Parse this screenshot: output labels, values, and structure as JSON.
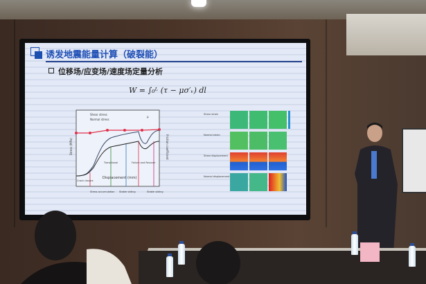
{
  "slide": {
    "title": "诱发地震能量计算（破裂能）",
    "bullet": "位移场/应变场/速度场定量分析",
    "formula": "W = ∫₀ᴸ (τ − μσ′ᵥ) dl",
    "chart": {
      "legend": [
        "Shear stress",
        "Normal stress",
        "μ"
      ],
      "y_label": "Stress (MPa)",
      "y2_label": "Friction coefficient",
      "x_label": "Displacement (mm)",
      "phase_labels": [
        "Transitional",
        "Failure and Recover"
      ],
      "stage_labels": [
        "Crack closure",
        "Stress accumulation",
        "Stable sliding",
        "Stable sliding"
      ],
      "colors": {
        "shear": "#222222",
        "normal": "#e0304a",
        "mu": "#3a4a6a"
      }
    },
    "heatmap": {
      "row_labels": [
        "Shear strain",
        "Normal strain",
        "Shear displacement",
        "Normal displacement"
      ]
    }
  }
}
